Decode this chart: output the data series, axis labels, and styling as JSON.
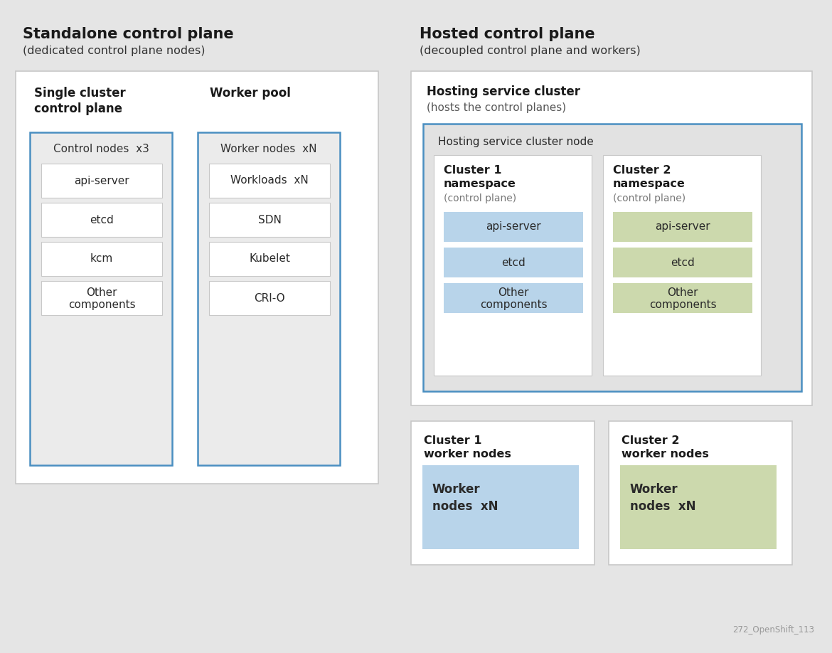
{
  "bg_color": "#e5e5e5",
  "white": "#ffffff",
  "light_gray": "#ebebeb",
  "inner_node_gray": "#e2e2e2",
  "blue_border": "#4a8fc1",
  "blue_fill": "#b8d4ea",
  "green_fill": "#ccd9ad",
  "border_gray": "#c8c8c8",
  "left_title": "Standalone control plane",
  "left_subtitle": "(dedicated control plane nodes)",
  "right_title": "Hosted control plane",
  "right_subtitle": "(decoupled control plane and workers)",
  "single_cluster_label": "Single cluster\ncontrol plane",
  "worker_pool_label": "Worker pool",
  "control_nodes_label": "Control nodes  x3",
  "control_components": [
    "api-server",
    "etcd",
    "kcm",
    "Other\ncomponents"
  ],
  "worker_nodes_label": "Worker nodes  xN",
  "worker_components": [
    "Workloads  xN",
    "SDN",
    "Kubelet",
    "CRI-O"
  ],
  "hosting_service_label": "Hosting service cluster",
  "hosting_service_sub": "(hosts the control planes)",
  "hosting_node_label": "Hosting service cluster node",
  "cluster1_ns_label": "Cluster 1\nnamespace",
  "cluster1_ns_sub": "(control plane)",
  "cluster1_components": [
    "api-server",
    "etcd",
    "Other\ncomponents"
  ],
  "cluster2_ns_label": "Cluster 2\nnamespace",
  "cluster2_ns_sub": "(control plane)",
  "cluster2_components": [
    "api-server",
    "etcd",
    "Other\ncomponents"
  ],
  "cluster1_workers_label": "Cluster 1\nworker nodes",
  "cluster1_worker_box": "Worker\nnodes  xN",
  "cluster2_workers_label": "Cluster 2\nworker nodes",
  "cluster2_worker_box": "Worker\nnodes  xN",
  "footer_text": "272_OpenShift_113"
}
